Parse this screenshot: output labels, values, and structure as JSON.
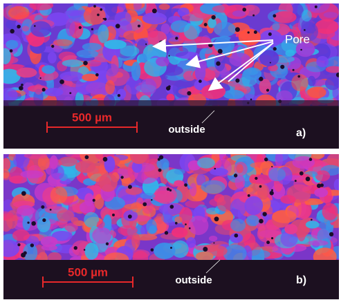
{
  "panels": [
    {
      "pore_label": "Pore",
      "scale_bar": "500 µm",
      "outside_label": "outside",
      "panel_label": "a)"
    },
    {
      "scale_bar": "500 µm",
      "outside_label": "outside",
      "panel_label": "b)"
    }
  ]
}
